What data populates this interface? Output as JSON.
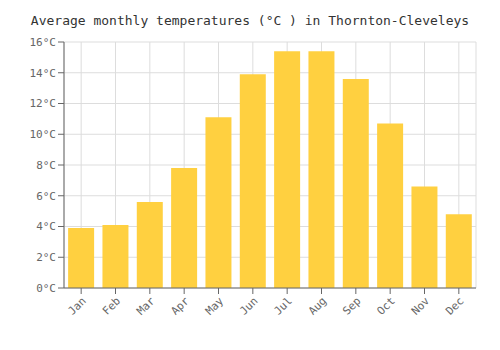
{
  "chart_data": {
    "type": "bar",
    "title": "Average monthly temperatures (°C ) in Thornton-Cleveleys",
    "categories": [
      "Jan",
      "Feb",
      "Mar",
      "Apr",
      "May",
      "Jun",
      "Jul",
      "Aug",
      "Sep",
      "Oct",
      "Nov",
      "Dec"
    ],
    "values": [
      3.9,
      4.1,
      5.6,
      7.8,
      11.1,
      13.9,
      15.4,
      15.4,
      13.6,
      10.7,
      6.6,
      4.8
    ],
    "color": "#FFD040",
    "ylim": [
      0,
      16
    ],
    "yticks": [
      {
        "value": 0,
        "label": "0°C"
      },
      {
        "value": 2,
        "label": "2°C"
      },
      {
        "value": 4,
        "label": "4°C"
      },
      {
        "value": 6,
        "label": "6°C"
      },
      {
        "value": 8,
        "label": "8°C"
      },
      {
        "value": 10,
        "label": "10°C"
      },
      {
        "value": 12,
        "label": "12°C"
      },
      {
        "value": 14,
        "label": "14°C"
      },
      {
        "value": 16,
        "label": "16°C"
      }
    ],
    "grid": true
  }
}
